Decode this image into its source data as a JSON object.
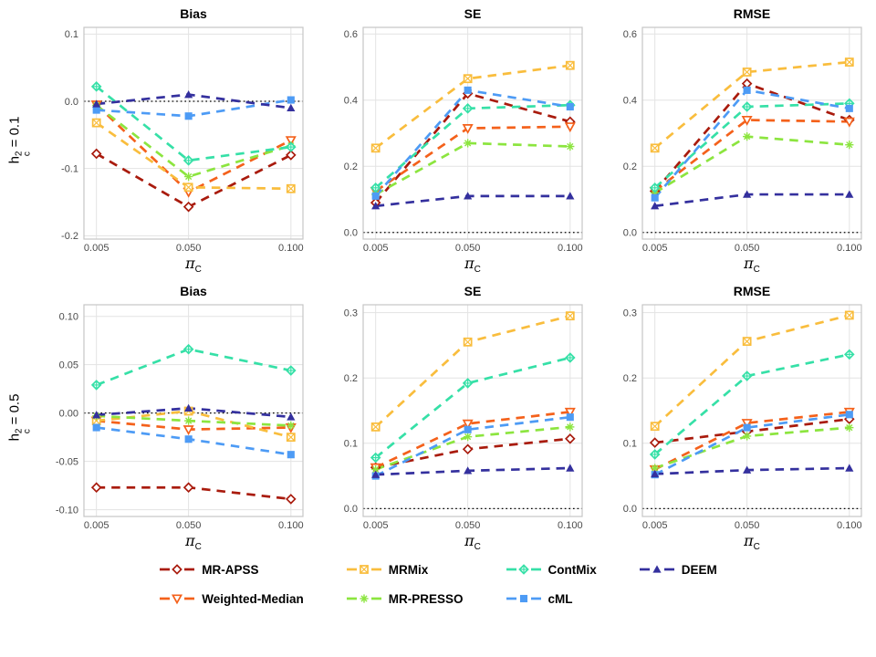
{
  "style": {
    "background": "#ffffff",
    "panel_fill": "#ffffff",
    "panel_border": "#c6c6c6",
    "grid_color": "#e3e3e3",
    "zero_line_color": "#000000",
    "tick_label_color": "#4a4a4a",
    "title_color": "#000000"
  },
  "rows": [
    {
      "base": "h",
      "sup": "2",
      "sub": "c",
      "eq": " = 0.1"
    },
    {
      "base": "h",
      "sup": "2",
      "sub": "c",
      "eq": " = 0.5"
    }
  ],
  "axis": {
    "x_title_base": "π",
    "x_title_sub": "C"
  },
  "methods": [
    {
      "name": "MR-APSS",
      "color": "#a91b0d",
      "marker": "diamond-open"
    },
    {
      "name": "Weighted-Median",
      "color": "#f4611b",
      "marker": "triangle-down-open"
    },
    {
      "name": "MRMix",
      "color": "#f9bd3d",
      "marker": "square-x"
    },
    {
      "name": "MR-PRESSO",
      "color": "#8ce53f",
      "marker": "asterisk"
    },
    {
      "name": "ContMix",
      "color": "#36e0a7",
      "marker": "diamond-plus"
    },
    {
      "name": "cML",
      "color": "#4d9bf5",
      "marker": "square-filled"
    },
    {
      "name": "DEEM",
      "color": "#34309e",
      "marker": "triangle-filled"
    }
  ],
  "legend": {
    "row1": [
      "MR-APSS",
      "MRMix",
      "ContMix",
      "DEEM"
    ],
    "row2": [
      "Weighted-Median",
      "MR-PRESSO",
      "cML"
    ]
  },
  "chart_data": [
    {
      "type": "line",
      "title": "Bias",
      "row_label": "h2c = 0.1",
      "x": [
        0.005,
        0.05,
        0.1
      ],
      "x_tick_labels": [
        "0.005",
        "0.050",
        "0.100"
      ],
      "ylim": [
        -0.205,
        0.11
      ],
      "yticks": [
        0.1,
        0.0,
        -0.1,
        -0.2
      ],
      "ytick_labels": [
        "0.1",
        "0.0",
        "-0.1",
        "-0.2"
      ],
      "zero_line": 0,
      "series": [
        {
          "name": "MR-APSS",
          "values": [
            -0.078,
            -0.157,
            -0.08
          ]
        },
        {
          "name": "Weighted-Median",
          "values": [
            -0.005,
            -0.135,
            -0.058
          ]
        },
        {
          "name": "MRMix",
          "values": [
            -0.032,
            -0.128,
            -0.13
          ]
        },
        {
          "name": "MR-PRESSO",
          "values": [
            -0.006,
            -0.112,
            -0.066
          ]
        },
        {
          "name": "ContMix",
          "values": [
            0.022,
            -0.088,
            -0.068
          ]
        },
        {
          "name": "cML",
          "values": [
            -0.013,
            -0.022,
            0.002
          ]
        },
        {
          "name": "DEEM",
          "values": [
            -0.004,
            0.01,
            -0.01
          ]
        }
      ]
    },
    {
      "type": "line",
      "title": "SE",
      "row_label": "h2c = 0.1",
      "x": [
        0.005,
        0.05,
        0.1
      ],
      "x_tick_labels": [
        "0.005",
        "0.050",
        "0.100"
      ],
      "ylim": [
        -0.02,
        0.62
      ],
      "yticks": [
        0.0,
        0.2,
        0.4,
        0.6
      ],
      "ytick_labels": [
        "0.0",
        "0.2",
        "0.4",
        "0.6"
      ],
      "zero_line": 0,
      "series": [
        {
          "name": "MR-APSS",
          "values": [
            0.09,
            0.42,
            0.335
          ]
        },
        {
          "name": "Weighted-Median",
          "values": [
            0.125,
            0.315,
            0.32
          ]
        },
        {
          "name": "MRMix",
          "values": [
            0.255,
            0.465,
            0.505
          ]
        },
        {
          "name": "MR-PRESSO",
          "values": [
            0.115,
            0.27,
            0.26
          ]
        },
        {
          "name": "ContMix",
          "values": [
            0.135,
            0.375,
            0.385
          ]
        },
        {
          "name": "cML",
          "values": [
            0.11,
            0.43,
            0.38
          ]
        },
        {
          "name": "DEEM",
          "values": [
            0.08,
            0.11,
            0.11
          ]
        }
      ]
    },
    {
      "type": "line",
      "title": "RMSE",
      "row_label": "h2c = 0.1",
      "x": [
        0.005,
        0.05,
        0.1
      ],
      "x_tick_labels": [
        "0.005",
        "0.050",
        "0.100"
      ],
      "ylim": [
        -0.02,
        0.62
      ],
      "yticks": [
        0.0,
        0.2,
        0.4,
        0.6
      ],
      "ytick_labels": [
        "0.0",
        "0.2",
        "0.4",
        "0.6"
      ],
      "zero_line": 0,
      "series": [
        {
          "name": "MR-APSS",
          "values": [
            0.125,
            0.45,
            0.34
          ]
        },
        {
          "name": "Weighted-Median",
          "values": [
            0.125,
            0.34,
            0.335
          ]
        },
        {
          "name": "MRMix",
          "values": [
            0.255,
            0.485,
            0.515
          ]
        },
        {
          "name": "MR-PRESSO",
          "values": [
            0.12,
            0.29,
            0.265
          ]
        },
        {
          "name": "ContMix",
          "values": [
            0.135,
            0.38,
            0.39
          ]
        },
        {
          "name": "cML",
          "values": [
            0.105,
            0.43,
            0.375
          ]
        },
        {
          "name": "DEEM",
          "values": [
            0.08,
            0.115,
            0.115
          ]
        }
      ]
    },
    {
      "type": "line",
      "title": "Bias",
      "row_label": "h2c = 0.5",
      "x": [
        0.005,
        0.05,
        0.1
      ],
      "x_tick_labels": [
        "0.005",
        "0.050",
        "0.100"
      ],
      "ylim": [
        -0.107,
        0.112
      ],
      "yticks": [
        0.1,
        0.05,
        0.0,
        -0.05,
        -0.1
      ],
      "ytick_labels": [
        "0.10",
        "0.05",
        "0.00",
        "-0.05",
        "-0.10"
      ],
      "zero_line": 0,
      "series": [
        {
          "name": "MR-APSS",
          "values": [
            -0.077,
            -0.077,
            -0.089
          ]
        },
        {
          "name": "Weighted-Median",
          "values": [
            -0.008,
            -0.017,
            -0.015
          ]
        },
        {
          "name": "MRMix",
          "values": [
            -0.008,
            0.002,
            -0.025
          ]
        },
        {
          "name": "MR-PRESSO",
          "values": [
            -0.003,
            -0.008,
            -0.013
          ]
        },
        {
          "name": "ContMix",
          "values": [
            0.029,
            0.066,
            0.044
          ]
        },
        {
          "name": "cML",
          "values": [
            -0.015,
            -0.027,
            -0.043
          ]
        },
        {
          "name": "DEEM",
          "values": [
            -0.002,
            0.005,
            -0.004
          ]
        }
      ]
    },
    {
      "type": "line",
      "title": "SE",
      "row_label": "h2c = 0.5",
      "x": [
        0.005,
        0.05,
        0.1
      ],
      "x_tick_labels": [
        "0.005",
        "0.050",
        "0.100"
      ],
      "ylim": [
        -0.012,
        0.312
      ],
      "yticks": [
        0.0,
        0.1,
        0.2,
        0.3
      ],
      "ytick_labels": [
        "0.0",
        "0.1",
        "0.2",
        "0.3"
      ],
      "zero_line": 0,
      "series": [
        {
          "name": "MR-APSS",
          "values": [
            0.063,
            0.091,
            0.107
          ]
        },
        {
          "name": "Weighted-Median",
          "values": [
            0.063,
            0.13,
            0.148
          ]
        },
        {
          "name": "MRMix",
          "values": [
            0.125,
            0.255,
            0.295
          ]
        },
        {
          "name": "MR-PRESSO",
          "values": [
            0.06,
            0.11,
            0.125
          ]
        },
        {
          "name": "ContMix",
          "values": [
            0.078,
            0.192,
            0.231
          ]
        },
        {
          "name": "cML",
          "values": [
            0.05,
            0.121,
            0.14
          ]
        },
        {
          "name": "DEEM",
          "values": [
            0.052,
            0.058,
            0.062
          ]
        }
      ]
    },
    {
      "type": "line",
      "title": "RMSE",
      "row_label": "h2c = 0.5",
      "x": [
        0.005,
        0.05,
        0.1
      ],
      "x_tick_labels": [
        "0.005",
        "0.050",
        "0.100"
      ],
      "ylim": [
        -0.012,
        0.312
      ],
      "yticks": [
        0.0,
        0.1,
        0.2,
        0.3
      ],
      "ytick_labels": [
        "0.0",
        "0.1",
        "0.2",
        "0.3"
      ],
      "zero_line": 0,
      "series": [
        {
          "name": "MR-APSS",
          "values": [
            0.101,
            0.118,
            0.137
          ]
        },
        {
          "name": "Weighted-Median",
          "values": [
            0.06,
            0.131,
            0.148
          ]
        },
        {
          "name": "MRMix",
          "values": [
            0.126,
            0.256,
            0.296
          ]
        },
        {
          "name": "MR-PRESSO",
          "values": [
            0.062,
            0.111,
            0.124
          ]
        },
        {
          "name": "ContMix",
          "values": [
            0.083,
            0.203,
            0.236
          ]
        },
        {
          "name": "cML",
          "values": [
            0.052,
            0.124,
            0.144
          ]
        },
        {
          "name": "DEEM",
          "values": [
            0.053,
            0.059,
            0.062
          ]
        }
      ]
    }
  ]
}
